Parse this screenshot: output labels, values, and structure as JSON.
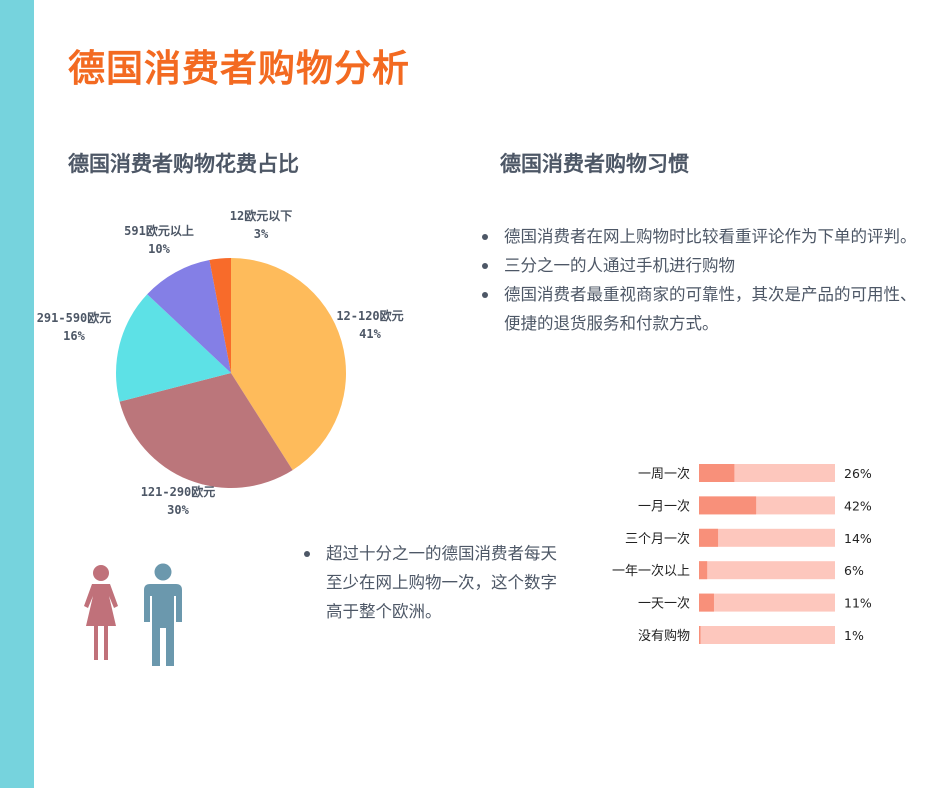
{
  "page": {
    "title": "德国消费者购物分析"
  },
  "pie_section": {
    "title": "德国消费者购物花费占比"
  },
  "habits_section": {
    "title": "德国消费者购物习惯",
    "bullets": [
      "德国消费者在网上购物时比较看重评论作为下单的评判。",
      "三分之一的人通过手机进行购物",
      "德国消费者最重视商家的可靠性，其次是产品的可用性、便捷的退货服务和付款方式。"
    ]
  },
  "fact_section": {
    "bullets": [
      "超过十分之一的德国消费者每天至少在网上购物一次，这个数字高于整个欧洲。"
    ]
  },
  "icons": {
    "female": "female-person-icon",
    "male": "male-person-icon"
  },
  "colors": {
    "sidebar": "#76d3dd",
    "title": "#f36a21",
    "female_icon": "#c0717a",
    "male_icon": "#6b98ad",
    "bar_fill": "#f8907a",
    "bar_track": "#fdc7bd"
  },
  "chart_data": [
    {
      "type": "pie",
      "title": "德国消费者购物花费占比",
      "categories": [
        "12-120欧元",
        "121-290欧元",
        "291-590欧元",
        "591欧元以上",
        "12欧元以下"
      ],
      "values": [
        41,
        30,
        16,
        10,
        3
      ],
      "value_labels": [
        "41%",
        "30%",
        "16%",
        "10%",
        "3%"
      ],
      "colors": [
        "#febb5b",
        "#bb767b",
        "#5de1e6",
        "#847fe6",
        "#f86b2a"
      ]
    },
    {
      "type": "bar",
      "orientation": "horizontal",
      "categories": [
        "一周一次",
        "一月一次",
        "三个月一次",
        "一年一次以上",
        "一天一次",
        "没有购物"
      ],
      "values": [
        26,
        42,
        14,
        6,
        11,
        1
      ],
      "value_labels": [
        "26%",
        "42%",
        "14%",
        "6%",
        "11%",
        "1%"
      ],
      "xlim": [
        0,
        100
      ]
    }
  ]
}
